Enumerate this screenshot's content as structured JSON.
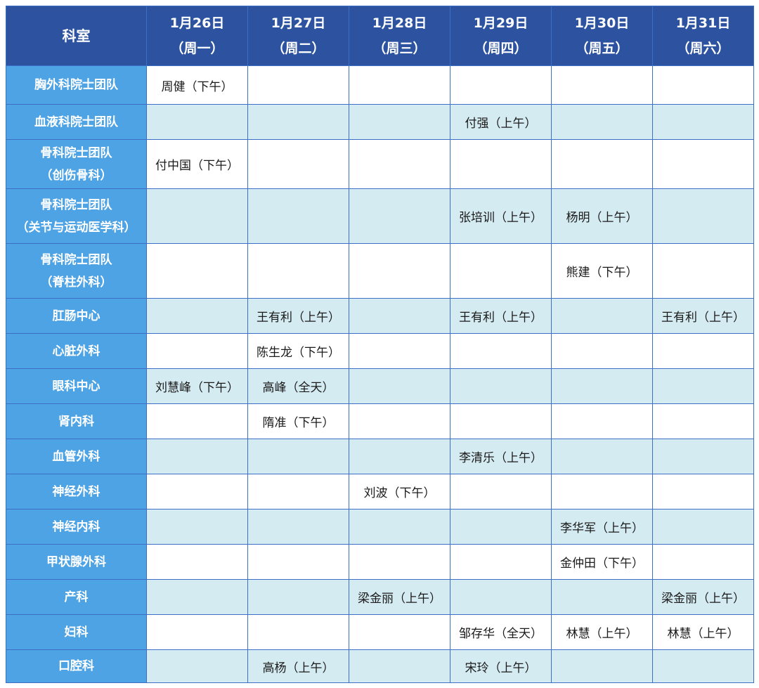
{
  "header": {
    "dept_label": "科室",
    "days": [
      {
        "date": "1月26日",
        "weekday": "（周一）"
      },
      {
        "date": "1月27日",
        "weekday": "（周二）"
      },
      {
        "date": "1月28日",
        "weekday": "（周三）"
      },
      {
        "date": "1月29日",
        "weekday": "（周四）"
      },
      {
        "date": "1月30日",
        "weekday": "（周五）"
      },
      {
        "date": "1月31日",
        "weekday": "（周六）"
      }
    ]
  },
  "colors": {
    "header_bg": "#2c52a0",
    "dept_bg": "#4ea3e4",
    "alt_row_bg": "#d5ebf2",
    "border": "#3d6fc6"
  },
  "rows": [
    {
      "dept": [
        "胸外科院士团队"
      ],
      "cells": [
        "周健（下午）",
        "",
        "",
        "",
        "",
        ""
      ]
    },
    {
      "dept": [
        "血液科院士团队"
      ],
      "cells": [
        "",
        "",
        "",
        "付强（上午）",
        "",
        ""
      ]
    },
    {
      "dept": [
        "骨科院士团队",
        "（创伤骨科）"
      ],
      "cells": [
        "付中国（下午）",
        "",
        "",
        "",
        "",
        ""
      ]
    },
    {
      "dept": [
        "骨科院士团队",
        "（关节与运动医学科）"
      ],
      "cells": [
        "",
        "",
        "",
        "张培训（上午）",
        "杨明（上午）",
        ""
      ]
    },
    {
      "dept": [
        "骨科院士团队",
        "（脊柱外科）"
      ],
      "cells": [
        "",
        "",
        "",
        "",
        "熊建（下午）",
        ""
      ]
    },
    {
      "dept": [
        "肛肠中心"
      ],
      "cells": [
        "",
        "王有利（上午）",
        "",
        "王有利（上午）",
        "",
        "王有利（上午）"
      ]
    },
    {
      "dept": [
        "心脏外科"
      ],
      "cells": [
        "",
        "陈生龙（下午）",
        "",
        "",
        "",
        ""
      ]
    },
    {
      "dept": [
        "眼科中心"
      ],
      "cells": [
        "刘慧峰（下午）",
        "高峰（全天）",
        "",
        "",
        "",
        ""
      ]
    },
    {
      "dept": [
        "肾内科"
      ],
      "cells": [
        "",
        "隋准（下午）",
        "",
        "",
        "",
        ""
      ]
    },
    {
      "dept": [
        "血管外科"
      ],
      "cells": [
        "",
        "",
        "",
        "李清乐（上午）",
        "",
        ""
      ]
    },
    {
      "dept": [
        "神经外科"
      ],
      "cells": [
        "",
        "",
        "刘波（下午）",
        "",
        "",
        ""
      ]
    },
    {
      "dept": [
        "神经内科"
      ],
      "cells": [
        "",
        "",
        "",
        "",
        "李华军（上午）",
        ""
      ]
    },
    {
      "dept": [
        "甲状腺外科"
      ],
      "cells": [
        "",
        "",
        "",
        "",
        "金仲田（下午）",
        ""
      ]
    },
    {
      "dept": [
        "产科"
      ],
      "cells": [
        "",
        "",
        "梁金丽（上午）",
        "",
        "",
        "梁金丽（上午）"
      ]
    },
    {
      "dept": [
        "妇科"
      ],
      "cells": [
        "",
        "",
        "",
        "邹存华（全天）",
        "林慧（上午）",
        "林慧（上午）"
      ]
    },
    {
      "dept": [
        "口腔科"
      ],
      "cells": [
        "",
        "高杨（上午）",
        "",
        "宋玲（上午）",
        "",
        ""
      ]
    }
  ]
}
